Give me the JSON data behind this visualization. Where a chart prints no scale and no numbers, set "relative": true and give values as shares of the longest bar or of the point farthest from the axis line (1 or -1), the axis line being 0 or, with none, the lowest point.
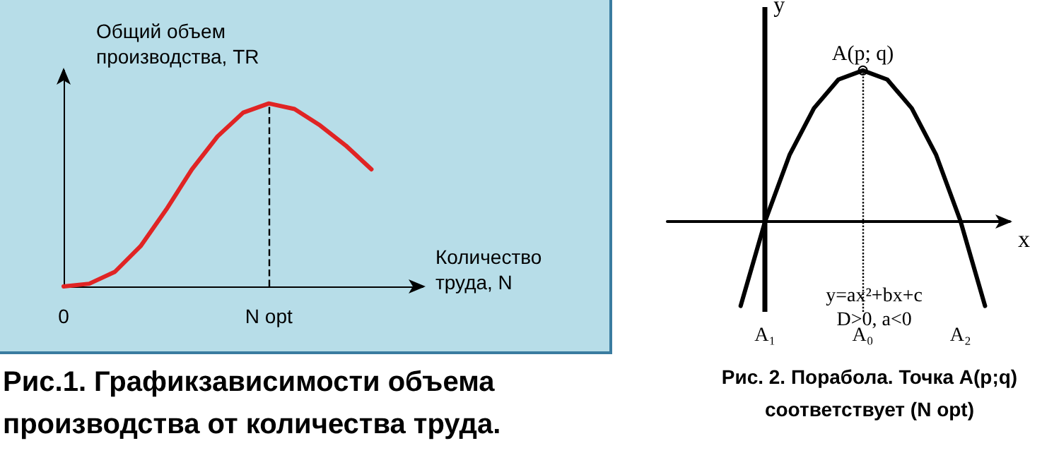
{
  "chart_data": [
    {
      "type": "line",
      "relative": true,
      "title": "Рис.1. Графикзависимости объема производства от количества труда.",
      "xlabel": "Количество труда, N",
      "ylabel": "Общий объем производства, TR",
      "categories": [
        "0",
        null,
        null,
        null,
        null,
        null,
        null,
        null,
        "N opt",
        null,
        null,
        null,
        null,
        null,
        null
      ],
      "series": [
        {
          "color": "#e02424",
          "values": [
            0,
            0.015,
            0.08,
            0.22,
            0.42,
            0.64,
            0.82,
            0.95,
            1,
            0.97,
            0.88,
            0.77,
            0.64,
            null,
            null
          ]
        }
      ],
      "ref_lines": [
        {
          "axis": "x",
          "value": "N opt",
          "color": "#000000",
          "line_style": "dashed"
        }
      ]
    },
    {
      "type": "line",
      "relative": true,
      "title": "Рис. 2. Порабола. Точка A(p;q) соответствует (N opt)",
      "xlabel": "x",
      "categories": [
        null,
        null,
        null,
        null,
        "A₁",
        null,
        null,
        null,
        "A₀",
        null,
        null,
        null,
        "A₂",
        null,
        null
      ],
      "series": [
        {
          "color": "#000000",
          "values": [
            null,
            null,
            null,
            -0.56,
            0,
            0.44,
            0.75,
            0.94,
            1,
            0.94,
            0.75,
            0.44,
            0,
            -0.56,
            null
          ]
        }
      ],
      "ref_lines": [
        {
          "axis": "x",
          "value": "A₁",
          "label": "y",
          "color": "#000000",
          "line_style": "solid"
        },
        {
          "axis": "x",
          "value": "A₀",
          "color": "#000000",
          "line_style": "dotted"
        }
      ],
      "annotations": [
        {
          "text": "A(p; q)",
          "x": "A₀",
          "y": 1
        },
        "y=ax²+bx+c",
        "D>0, a<0"
      ]
    }
  ]
}
